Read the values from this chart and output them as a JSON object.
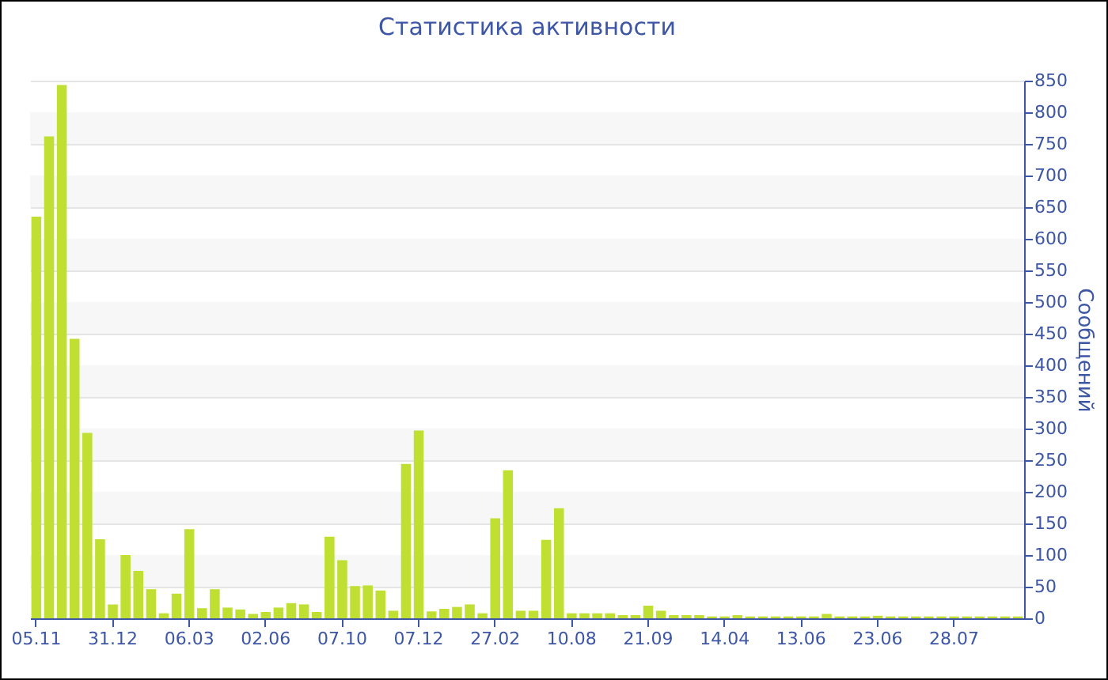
{
  "chart_data": {
    "type": "bar",
    "title": "Статистика активности",
    "ylabel": "Сообщений",
    "categories": [
      "05.11",
      null,
      null,
      null,
      null,
      null,
      "31.12",
      null,
      null,
      null,
      null,
      null,
      "06.03",
      null,
      null,
      null,
      null,
      null,
      "02.06",
      null,
      null,
      null,
      null,
      null,
      "07.10",
      null,
      null,
      null,
      null,
      null,
      "07.12",
      null,
      null,
      null,
      null,
      null,
      "27.02",
      null,
      null,
      null,
      null,
      null,
      "10.08",
      null,
      null,
      null,
      null,
      null,
      "21.09",
      null,
      null,
      null,
      null,
      null,
      "14.04",
      null,
      null,
      null,
      null,
      null,
      "13.06",
      null,
      null,
      null,
      null,
      null,
      "23.06",
      null,
      null,
      null,
      null,
      null,
      "28.07",
      null,
      null,
      null,
      null,
      null
    ],
    "values": [
      635,
      762,
      843,
      442,
      293,
      125,
      22,
      100,
      75,
      46,
      8,
      39,
      141,
      16,
      46,
      17,
      14,
      7,
      10,
      17,
      24,
      22,
      10,
      129,
      92,
      51,
      52,
      44,
      12,
      244,
      297,
      11,
      15,
      18,
      22,
      8,
      158,
      234,
      12,
      12,
      124,
      174,
      8,
      8,
      8,
      8,
      5,
      5,
      20,
      12,
      5,
      5,
      5,
      3,
      3,
      5,
      3,
      3,
      3,
      3,
      3,
      3,
      7,
      3,
      3,
      3,
      4,
      3,
      3,
      3,
      3,
      3,
      3,
      3,
      3,
      3,
      3,
      3
    ],
    "color": "#bfe033",
    "ylim": [
      0,
      850
    ],
    "yticks": [
      0,
      50,
      100,
      150,
      200,
      250,
      300,
      350,
      400,
      450,
      500,
      550,
      600,
      650,
      700,
      750,
      800,
      850
    ],
    "grid": true
  }
}
